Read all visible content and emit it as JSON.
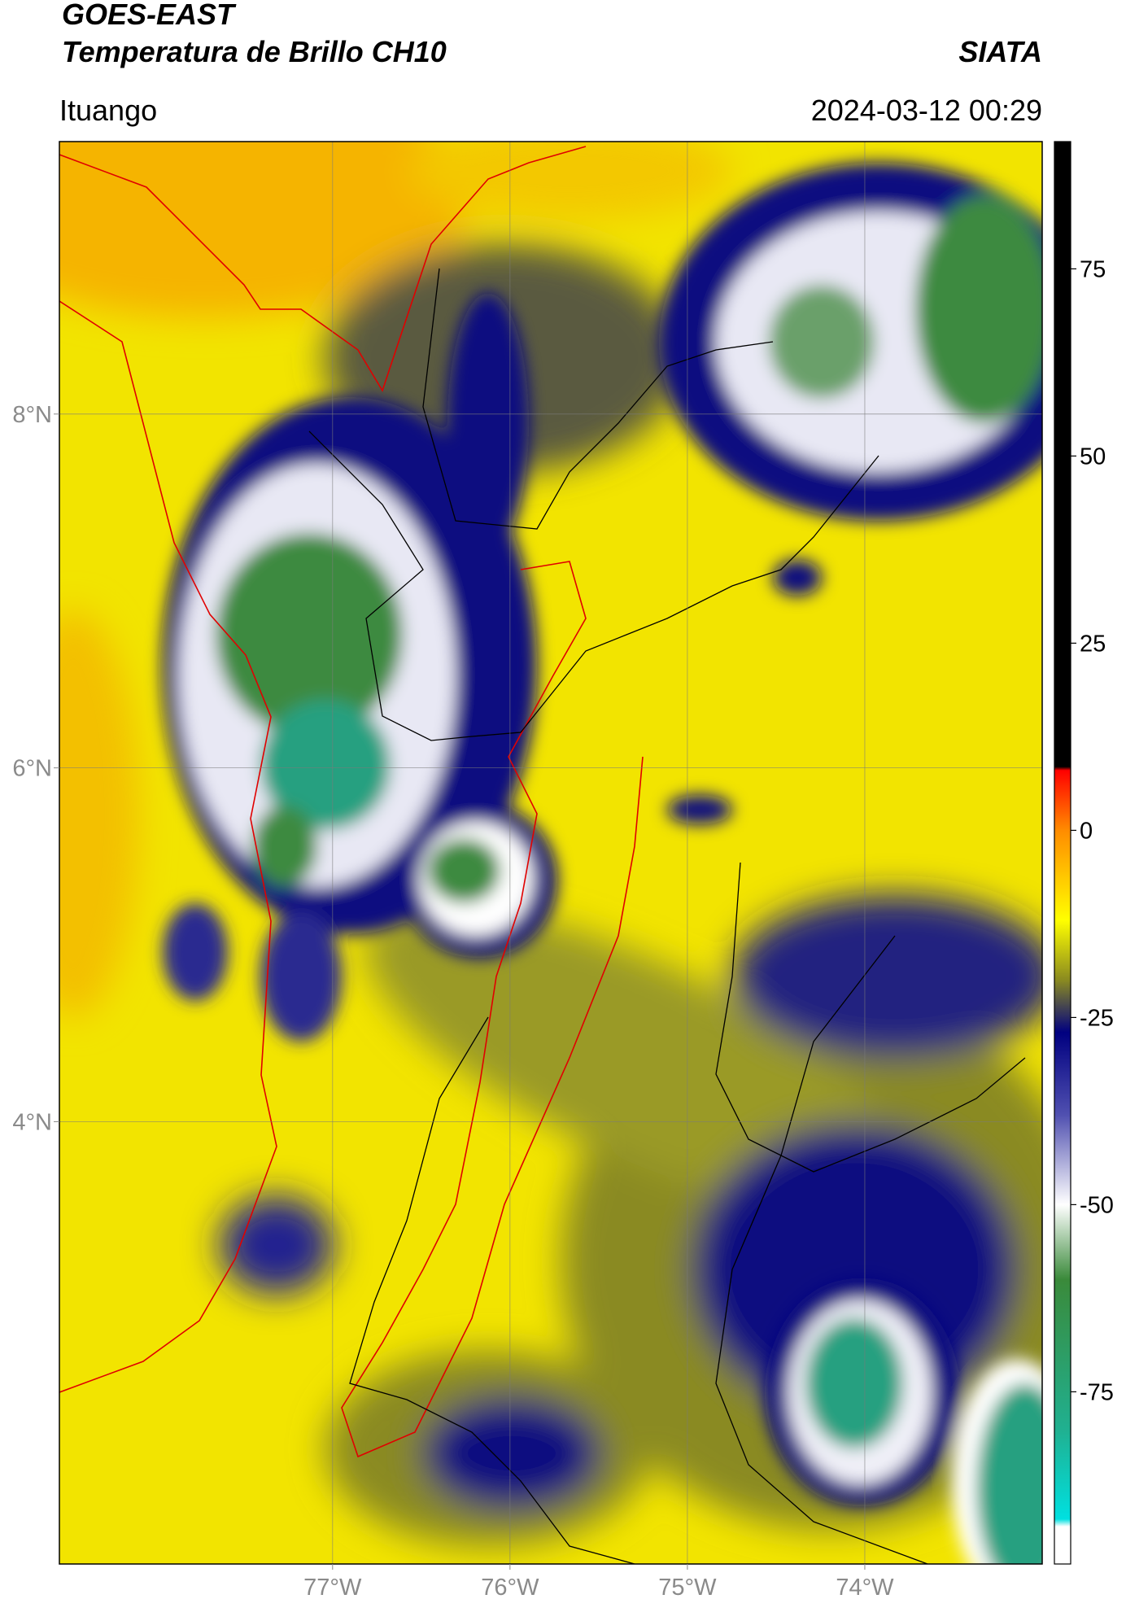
{
  "header": {
    "title": "GOES-EAST",
    "subtitle": "Temperatura de Brillo CH10",
    "source": "SIATA",
    "location": "Ituango",
    "timestamp": "2024-03-12 00:29"
  },
  "map": {
    "lon_range": [
      -78.54,
      -73.0
    ],
    "lat_range": [
      1.5,
      9.54
    ],
    "grid": true,
    "lat_ticks": [
      {
        "value": 8,
        "label": "8°N"
      },
      {
        "value": 6,
        "label": "6°N"
      },
      {
        "value": 4,
        "label": "4°N"
      }
    ],
    "lon_ticks": [
      {
        "value": -77,
        "label": "77°W"
      },
      {
        "value": -76,
        "label": "76°W"
      },
      {
        "value": -75,
        "label": "75°W"
      },
      {
        "value": -74,
        "label": "74°W"
      }
    ]
  },
  "colorbar": {
    "lim": [
      -98,
      92
    ],
    "ticks": [
      75,
      50,
      25,
      0,
      -25,
      -50,
      -75
    ],
    "colormap": [
      {
        "value": 92,
        "color": "#000000"
      },
      {
        "value": 8.5,
        "color": "#000000"
      },
      {
        "value": 8,
        "color": "#ff0000"
      },
      {
        "value": 0,
        "color": "#ff8c00"
      },
      {
        "value": -12,
        "color": "#ffff00"
      },
      {
        "value": -20,
        "color": "#8a8a20"
      },
      {
        "value": -27,
        "color": "#000080"
      },
      {
        "value": -38,
        "color": "#5050b0"
      },
      {
        "value": -50,
        "color": "#ffffff"
      },
      {
        "value": -60,
        "color": "#3a8a3a"
      },
      {
        "value": -80,
        "color": "#20b090"
      },
      {
        "value": -92,
        "color": "#00e0e0"
      },
      {
        "value": -93,
        "color": "#ffffff"
      },
      {
        "value": -98,
        "color": "#ffffff"
      }
    ]
  }
}
